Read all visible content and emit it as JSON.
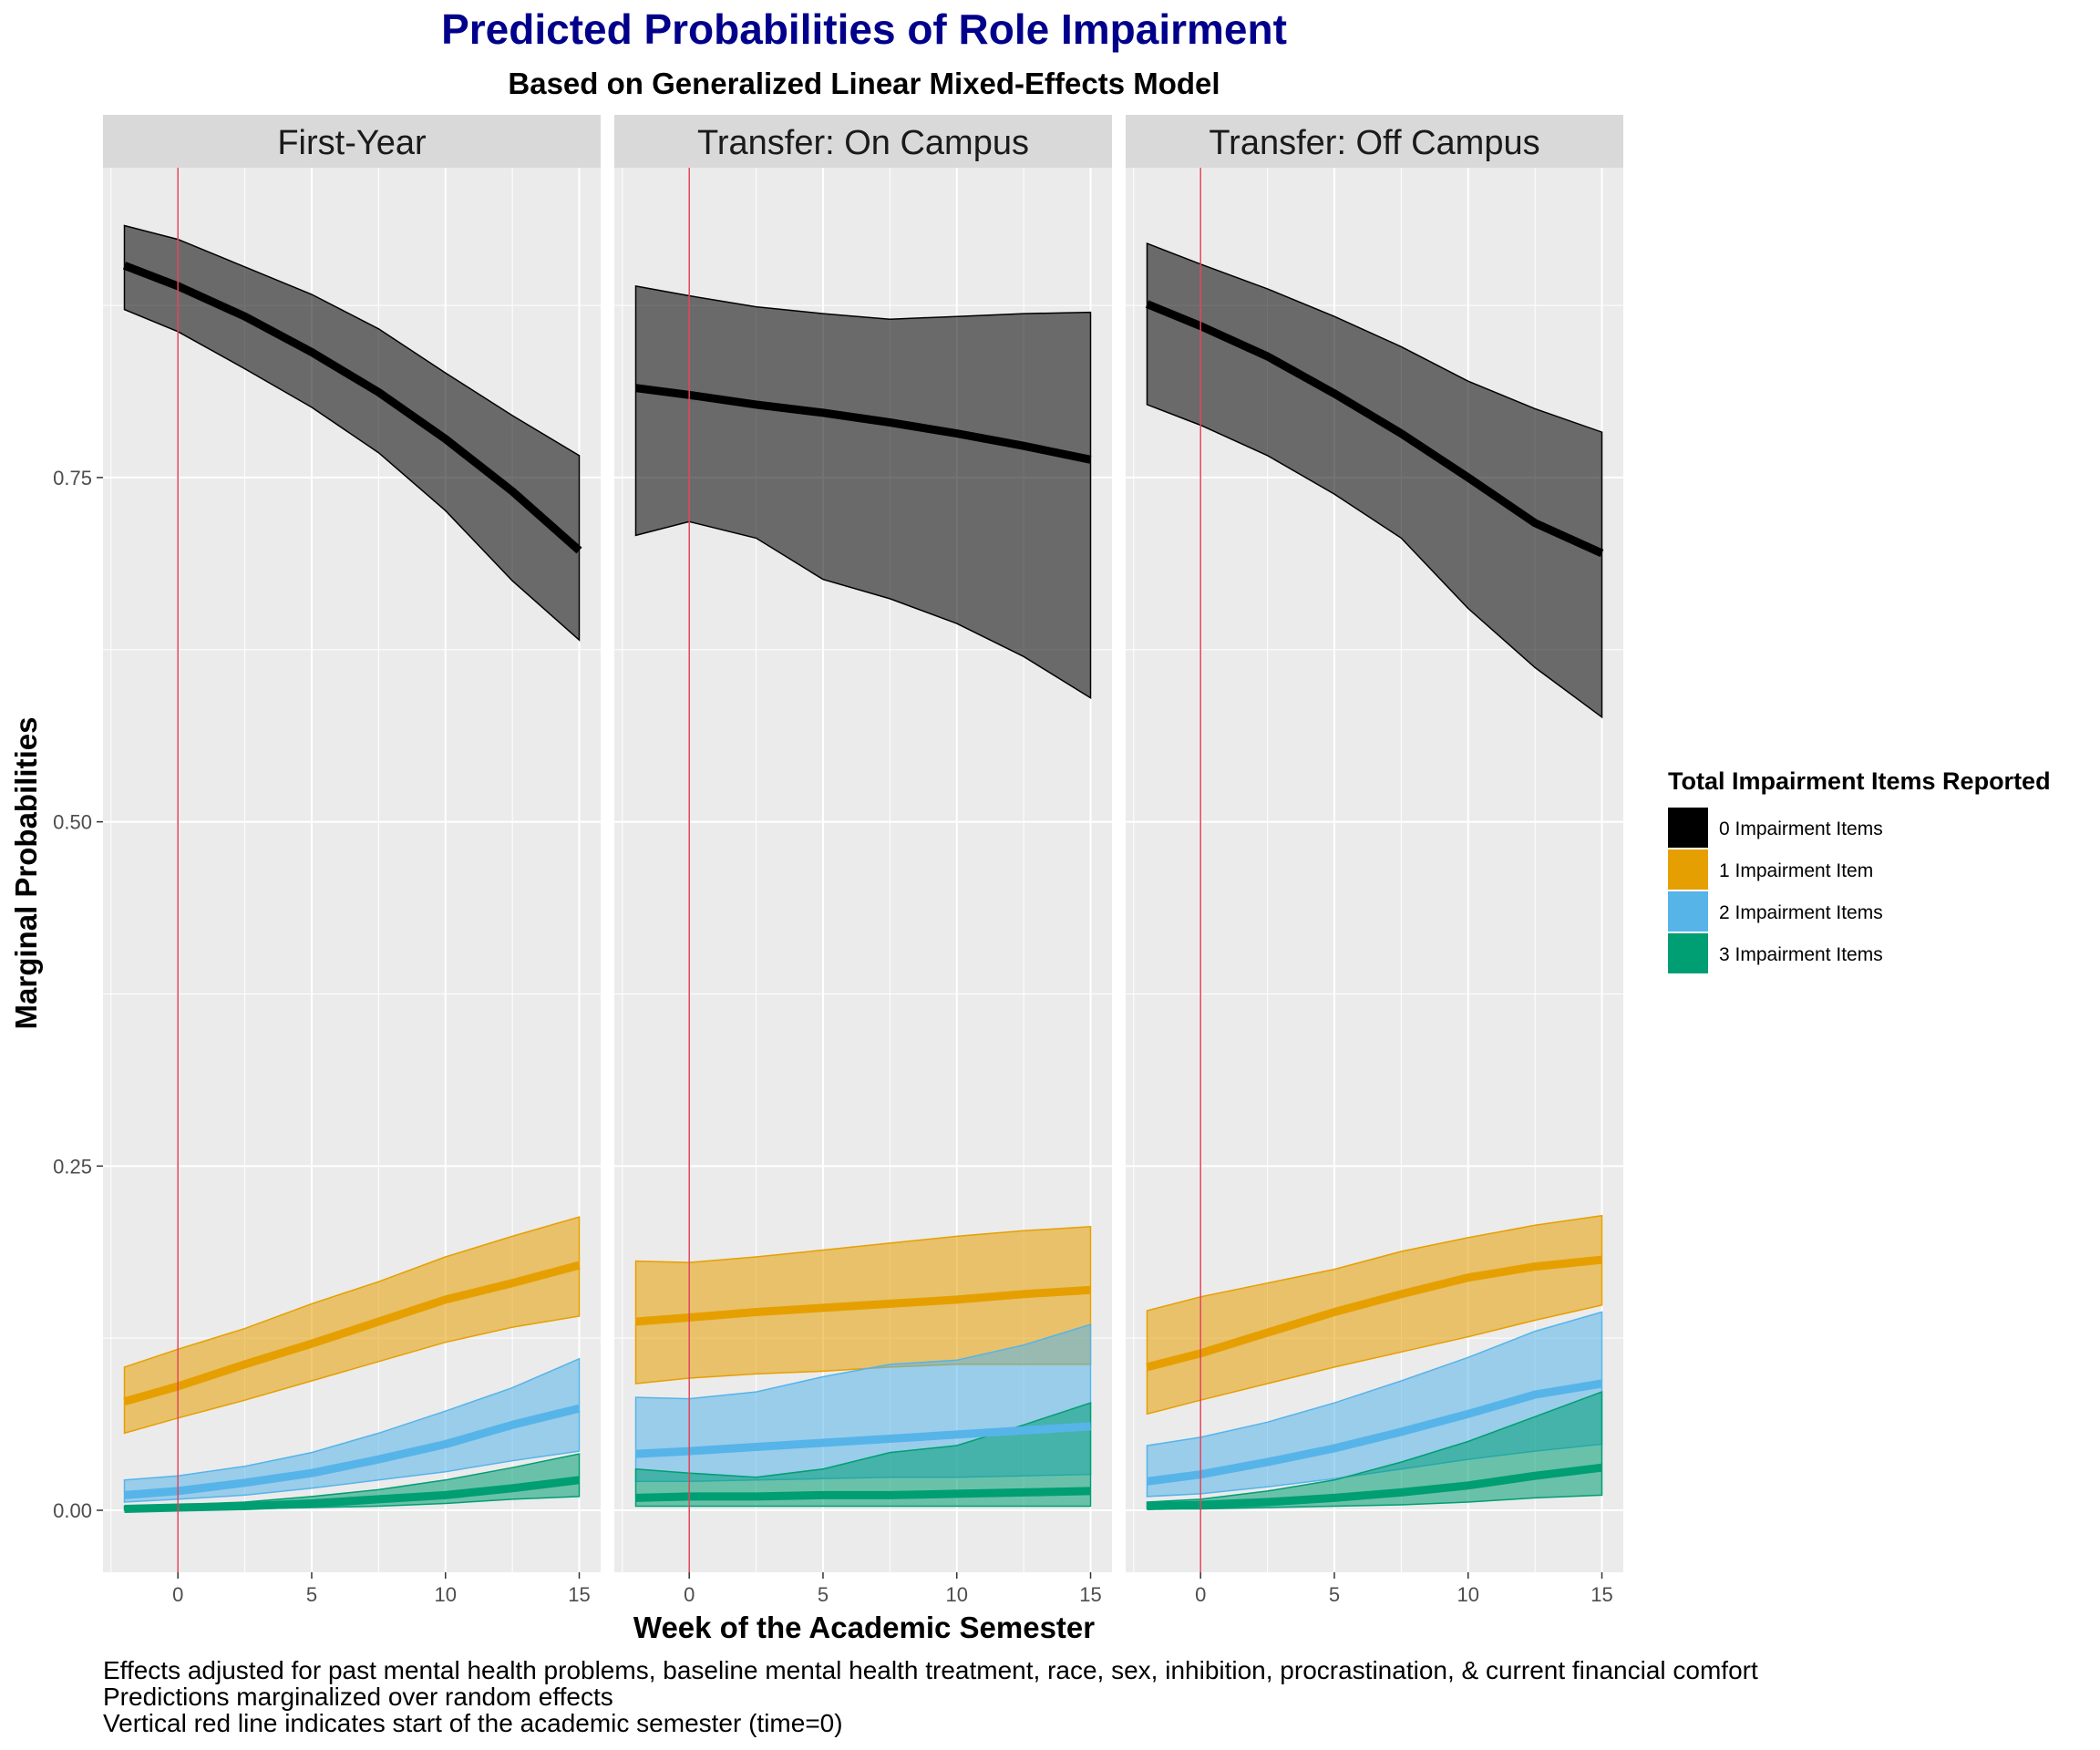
{
  "colors": {
    "title": "#00008B",
    "panel_bg": "#EBEBEB",
    "strip_bg": "#D9D9D9",
    "grid": "#FFFFFF",
    "ref_line": "#E0445A",
    "series": [
      "#000000",
      "#E69F00",
      "#56B4E9",
      "#009E73"
    ]
  },
  "chart_data": {
    "type": "line",
    "title": "Predicted Probabilities of Role Impairment",
    "subtitle": "Based on Generalized Linear Mixed-Effects Model",
    "xlabel": "Week of the Academic Semester",
    "ylabel": "Marginal Probabilities",
    "xlim": [
      -2.8,
      15.8
    ],
    "ylim": [
      -0.045,
      0.975
    ],
    "x_ticks": [
      0,
      5,
      10,
      15
    ],
    "x_tick_labels": [
      "0",
      "5",
      "10",
      "15"
    ],
    "y_ticks": [
      0,
      0.25,
      0.5,
      0.75
    ],
    "y_tick_labels": [
      "0.00",
      "0.25",
      "0.50",
      "0.75"
    ],
    "vline_x": 0,
    "grid": true,
    "legend": {
      "title": "Total Impairment Items Reported",
      "position": "right",
      "entries": [
        "0 Impairment Items",
        "1 Impairment Item",
        "2 Impairment Items",
        "3 Impairment Items"
      ]
    },
    "x": [
      -2,
      0,
      2.5,
      5,
      7.5,
      10,
      12.5,
      15
    ],
    "panels": [
      {
        "name": "First-Year",
        "series": [
          {
            "estimate": [
              0.904,
              0.889,
              0.867,
              0.841,
              0.812,
              0.778,
              0.74,
              0.697
            ],
            "lower": [
              0.872,
              0.856,
              0.829,
              0.801,
              0.768,
              0.726,
              0.675,
              0.632
            ],
            "upper": [
              0.933,
              0.923,
              0.903,
              0.883,
              0.858,
              0.826,
              0.795,
              0.766
            ]
          },
          {
            "estimate": [
              0.079,
              0.09,
              0.106,
              0.121,
              0.137,
              0.153,
              0.165,
              0.178
            ],
            "lower": [
              0.056,
              0.067,
              0.08,
              0.094,
              0.108,
              0.122,
              0.133,
              0.141
            ],
            "upper": [
              0.104,
              0.117,
              0.132,
              0.15,
              0.166,
              0.184,
              0.199,
              0.213
            ]
          },
          {
            "estimate": [
              0.011,
              0.014,
              0.02,
              0.027,
              0.037,
              0.048,
              0.062,
              0.074
            ],
            "lower": [
              0.006,
              0.008,
              0.011,
              0.016,
              0.022,
              0.028,
              0.036,
              0.043
            ],
            "upper": [
              0.022,
              0.025,
              0.032,
              0.042,
              0.056,
              0.072,
              0.089,
              0.11
            ]
          },
          {
            "estimate": [
              0.001,
              0.002,
              0.003,
              0.005,
              0.008,
              0.011,
              0.016,
              0.022
            ],
            "lower": [
              0.0,
              0.0,
              0.001,
              0.002,
              0.003,
              0.005,
              0.008,
              0.01
            ],
            "upper": [
              0.003,
              0.004,
              0.006,
              0.01,
              0.015,
              0.022,
              0.031,
              0.041
            ]
          }
        ]
      },
      {
        "name": "Transfer: On Campus",
        "series": [
          {
            "estimate": [
              0.815,
              0.81,
              0.803,
              0.797,
              0.79,
              0.782,
              0.773,
              0.763
            ],
            "lower": [
              0.708,
              0.718,
              0.706,
              0.676,
              0.662,
              0.644,
              0.62,
              0.59
            ],
            "upper": [
              0.889,
              0.882,
              0.874,
              0.869,
              0.865,
              0.867,
              0.869,
              0.87
            ]
          },
          {
            "estimate": [
              0.137,
              0.14,
              0.144,
              0.147,
              0.15,
              0.153,
              0.157,
              0.16
            ],
            "lower": [
              0.092,
              0.096,
              0.099,
              0.101,
              0.104,
              0.106,
              0.106,
              0.106
            ],
            "upper": [
              0.181,
              0.18,
              0.184,
              0.189,
              0.194,
              0.199,
              0.203,
              0.206
            ]
          },
          {
            "estimate": [
              0.041,
              0.043,
              0.046,
              0.049,
              0.052,
              0.055,
              0.058,
              0.061
            ],
            "lower": [
              0.021,
              0.021,
              0.022,
              0.023,
              0.024,
              0.024,
              0.025,
              0.026
            ],
            "upper": [
              0.082,
              0.081,
              0.086,
              0.097,
              0.106,
              0.109,
              0.12,
              0.135
            ]
          },
          {
            "estimate": [
              0.009,
              0.01,
              0.01,
              0.011,
              0.011,
              0.012,
              0.013,
              0.014
            ],
            "lower": [
              0.003,
              0.003,
              0.003,
              0.003,
              0.003,
              0.003,
              0.003,
              0.003
            ],
            "upper": [
              0.03,
              0.027,
              0.024,
              0.03,
              0.042,
              0.047,
              0.062,
              0.078
            ]
          }
        ]
      },
      {
        "name": "Transfer: Off Campus",
        "series": [
          {
            "estimate": [
              0.876,
              0.86,
              0.838,
              0.811,
              0.782,
              0.75,
              0.717,
              0.695
            ],
            "lower": [
              0.803,
              0.788,
              0.766,
              0.738,
              0.706,
              0.655,
              0.612,
              0.576
            ],
            "upper": [
              0.92,
              0.905,
              0.887,
              0.867,
              0.845,
              0.82,
              0.8,
              0.783
            ]
          },
          {
            "estimate": [
              0.104,
              0.114,
              0.129,
              0.144,
              0.157,
              0.169,
              0.177,
              0.182
            ],
            "lower": [
              0.07,
              0.08,
              0.092,
              0.104,
              0.115,
              0.126,
              0.138,
              0.149
            ],
            "upper": [
              0.145,
              0.155,
              0.165,
              0.175,
              0.188,
              0.198,
              0.207,
              0.214
            ]
          },
          {
            "estimate": [
              0.021,
              0.026,
              0.035,
              0.045,
              0.057,
              0.07,
              0.084,
              0.092
            ],
            "lower": [
              0.01,
              0.012,
              0.017,
              0.023,
              0.03,
              0.037,
              0.043,
              0.048
            ],
            "upper": [
              0.047,
              0.053,
              0.064,
              0.078,
              0.094,
              0.111,
              0.13,
              0.144
            ]
          },
          {
            "estimate": [
              0.003,
              0.004,
              0.006,
              0.009,
              0.013,
              0.018,
              0.025,
              0.031
            ],
            "lower": [
              0.001,
              0.001,
              0.002,
              0.003,
              0.004,
              0.006,
              0.009,
              0.011
            ],
            "upper": [
              0.006,
              0.008,
              0.014,
              0.022,
              0.035,
              0.05,
              0.068,
              0.086
            ]
          }
        ]
      }
    ],
    "captions": [
      "Effects adjusted for past mental health problems, baseline mental health treatment, race, sex, inhibition, procrastination, & current financial comfort",
      "Predictions marginalized over random effects",
      "Vertical red line indicates start of the academic semester (time=0)"
    ]
  }
}
